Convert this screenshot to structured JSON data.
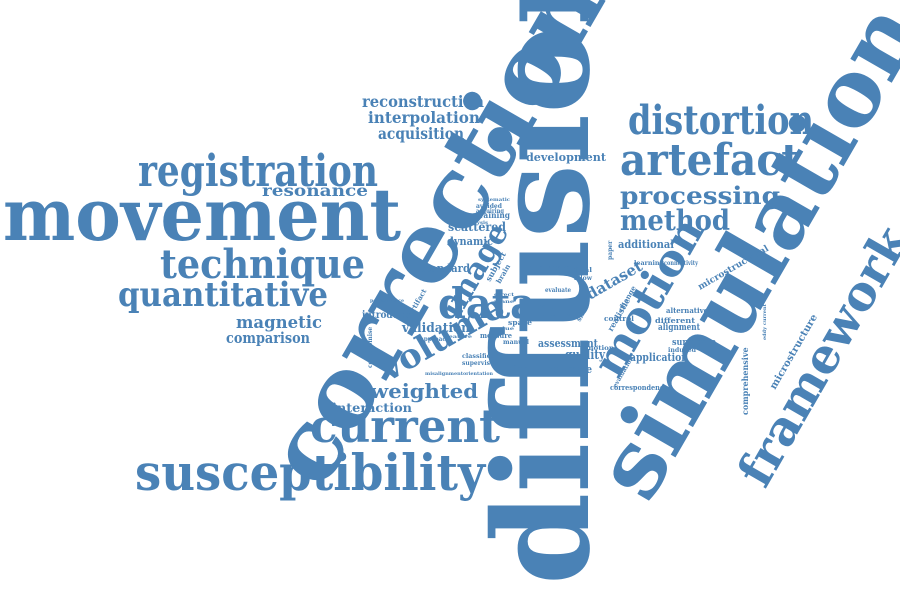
{
  "color": "#4a82b6",
  "words": [
    "diffusion",
    "correction",
    "simulation",
    "movement",
    "registration",
    "artefact",
    "distortion",
    "framework",
    "susceptibility",
    "current",
    "technique",
    "quantitative",
    "motion",
    "data",
    "volume",
    "image",
    "processing",
    "method",
    "reconstruction",
    "interpolation",
    "acquisition",
    "resonance",
    "weighted",
    "magnetic",
    "comparison",
    "interaction",
    "validation",
    "scattered",
    "dynamic",
    "standard",
    "tensor",
    "dataset",
    "field",
    "quality",
    "assessment",
    "estimate",
    "application",
    "surrogate",
    "alignment",
    "microstructure",
    "comprehensive",
    "microstructural",
    "development",
    "additional",
    "introduce",
    "training",
    "measure",
    "supervised",
    "manual",
    "classifier",
    "impact",
    "space",
    "subject",
    "brain",
    "realistic",
    "evaluate",
    "alternative",
    "different",
    "induced",
    "control",
    "slice",
    "final",
    "allow",
    "change",
    "learning",
    "connectivity",
    "performance",
    "compromise",
    "misalignment",
    "orientation",
    "correspondence",
    "avoided",
    "acquiring",
    "analysis",
    "evaluation",
    "approach",
    "artifact",
    "systematic",
    "direct",
    "plane",
    "value",
    "feature",
    "paper",
    "motion",
    "eddy current"
  ]
}
